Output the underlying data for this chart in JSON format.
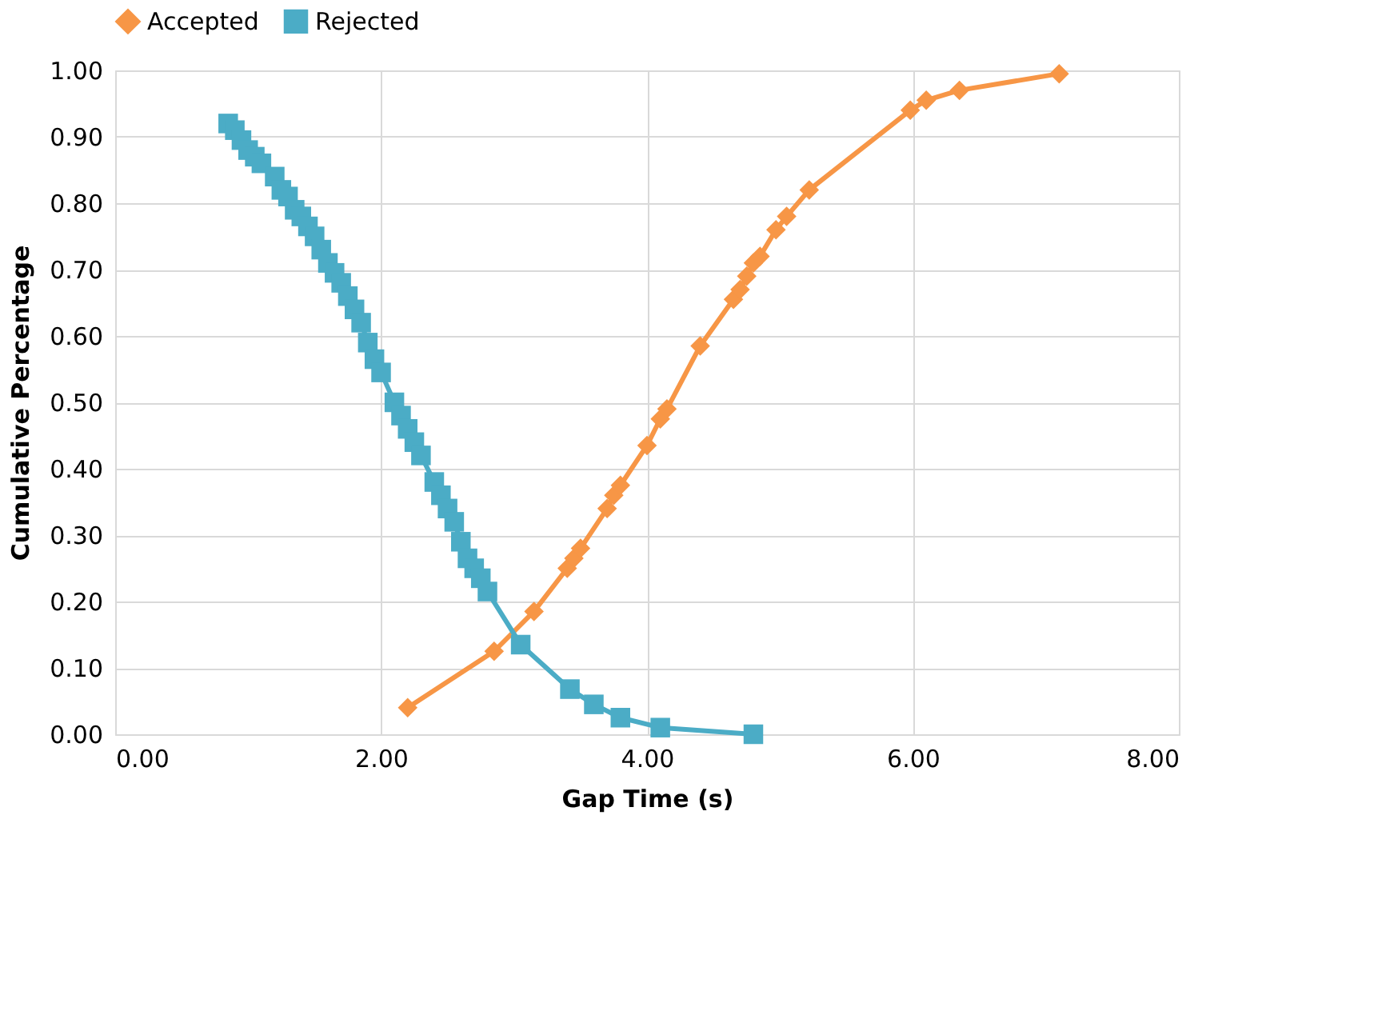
{
  "chart_data": {
    "type": "line",
    "xlabel": "Gap Time (s)",
    "ylabel": "Cumulative Percentage",
    "xlim": [
      0,
      8
    ],
    "xticks": [
      {
        "value": 0,
        "label": "0.00"
      },
      {
        "value": 2,
        "label": "2.00"
      },
      {
        "value": 4,
        "label": "4.00"
      },
      {
        "value": 6,
        "label": "6.00"
      },
      {
        "value": 8,
        "label": "8.00"
      }
    ],
    "ylim": [
      0,
      1
    ],
    "yticks": [
      {
        "value": 0,
        "label": "0.00"
      },
      {
        "value": 0.1,
        "label": "0.10"
      },
      {
        "value": 0.2,
        "label": "0.20"
      },
      {
        "value": 0.3,
        "label": "0.30"
      },
      {
        "value": 0.4,
        "label": "0.40"
      },
      {
        "value": 0.5,
        "label": "0.50"
      },
      {
        "value": 0.6,
        "label": "0.60"
      },
      {
        "value": 0.7,
        "label": "0.70"
      },
      {
        "value": 0.8,
        "label": "0.80"
      },
      {
        "value": 0.9,
        "label": "0.90"
      },
      {
        "value": 1,
        "label": "1.00"
      }
    ],
    "grid": true,
    "legend": "top",
    "line_style": "solid",
    "series": [
      {
        "name": "Accepted",
        "color": "#f79646",
        "marker": "diamond",
        "x": [
          2.2,
          2.85,
          3.15,
          3.4,
          3.45,
          3.5,
          3.7,
          3.75,
          3.8,
          4.0,
          4.1,
          4.15,
          4.4,
          4.65,
          4.7,
          4.75,
          4.8,
          4.85,
          4.97,
          5.05,
          5.22,
          5.98,
          6.1,
          6.35,
          7.1
        ],
        "values": [
          0.04,
          0.125,
          0.185,
          0.25,
          0.265,
          0.28,
          0.34,
          0.36,
          0.375,
          0.435,
          0.475,
          0.49,
          0.585,
          0.655,
          0.67,
          0.69,
          0.71,
          0.72,
          0.76,
          0.78,
          0.82,
          0.94,
          0.955,
          0.97,
          0.995
        ]
      },
      {
        "name": "Rejected",
        "color": "#4bacc6",
        "marker": "square",
        "x": [
          0.85,
          0.9,
          0.95,
          1.0,
          1.05,
          1.1,
          1.2,
          1.25,
          1.3,
          1.35,
          1.4,
          1.45,
          1.5,
          1.55,
          1.6,
          1.65,
          1.7,
          1.75,
          1.8,
          1.85,
          1.9,
          1.95,
          2.0,
          2.1,
          2.15,
          2.2,
          2.25,
          2.3,
          2.4,
          2.45,
          2.5,
          2.55,
          2.6,
          2.65,
          2.7,
          2.75,
          2.8,
          3.05,
          3.42,
          3.6,
          3.8,
          4.1,
          4.8
        ],
        "values": [
          0.92,
          0.91,
          0.895,
          0.88,
          0.87,
          0.86,
          0.84,
          0.82,
          0.81,
          0.79,
          0.78,
          0.765,
          0.75,
          0.73,
          0.71,
          0.695,
          0.68,
          0.66,
          0.64,
          0.62,
          0.59,
          0.565,
          0.545,
          0.5,
          0.48,
          0.46,
          0.44,
          0.42,
          0.38,
          0.36,
          0.34,
          0.32,
          0.29,
          0.265,
          0.25,
          0.235,
          0.215,
          0.135,
          0.068,
          0.045,
          0.025,
          0.01,
          0.0
        ]
      }
    ]
  }
}
